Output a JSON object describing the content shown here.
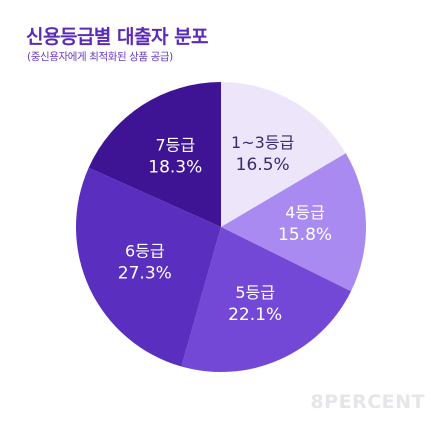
{
  "header": {
    "title": "신용등급별 대출자 분포",
    "subtitle": "(중신용자에게 최적화된 상품 공급)"
  },
  "chart_data": {
    "type": "pie",
    "title": "신용등급별 대출자 분포",
    "subtitle": "(중신용자에게 최적화된 상품 공급)",
    "slices": [
      {
        "label": "1~3등급",
        "value": 16.5,
        "value_label": "16.5%",
        "color": "#ede6fb",
        "text_color": "#3a2a70"
      },
      {
        "label": "4등급",
        "value": 15.8,
        "value_label": "15.8%",
        "color": "#a98af0",
        "text_color": "#ffffff"
      },
      {
        "label": "5등급",
        "value": 22.1,
        "value_label": "22.1%",
        "color": "#7448d6",
        "text_color": "#ffffff"
      },
      {
        "label": "6등급",
        "value": 27.3,
        "value_label": "27.3%",
        "color": "#5a2fbf",
        "text_color": "#ffffff"
      },
      {
        "label": "7등급",
        "value": 18.3,
        "value_label": "18.3%",
        "color": "#3e1494",
        "text_color": "#ffffff"
      }
    ],
    "legend": "none"
  },
  "watermark": "8PERCENT"
}
